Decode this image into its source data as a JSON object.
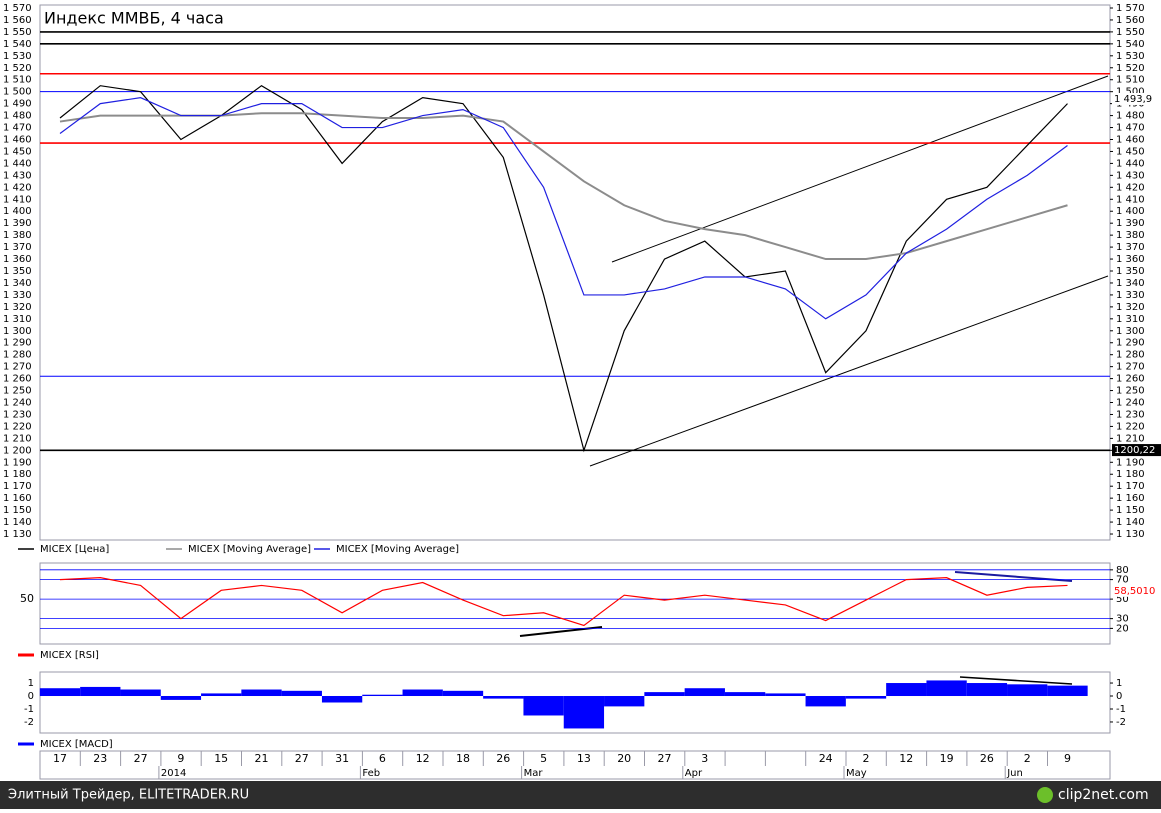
{
  "chart_data": [
    {
      "type": "line",
      "title": "Индекс ММВБ, 4 часа",
      "categories": [
        "17",
        "23",
        "27",
        "9",
        "15",
        "21",
        "27",
        "31",
        "6",
        "12",
        "18",
        "26",
        "5",
        "13",
        "20",
        "27",
        "3",
        null,
        null,
        "24",
        "2",
        "12",
        "19",
        "26",
        "2",
        "9"
      ],
      "months": [
        null,
        null,
        null,
        "2014",
        null,
        null,
        null,
        null,
        "Feb",
        null,
        null,
        null,
        "Mar",
        null,
        null,
        null,
        "Apr",
        null,
        null,
        null,
        "May",
        null,
        null,
        null,
        "Jun",
        null
      ],
      "series": [
        {
          "name": "MICEX [Цена]",
          "color": "#000000",
          "values": [
            1478,
            1505,
            1500,
            1460,
            1480,
            1505,
            1485,
            1440,
            1475,
            1495,
            1490,
            1445,
            1330,
            1200,
            1300,
            1360,
            1375,
            1345,
            1350,
            1265,
            1300,
            1375,
            1410,
            1420,
            1455,
            1490
          ]
        },
        {
          "name": "MICEX [Moving Average]",
          "color": "#8c8c8c",
          "values": [
            1475,
            1480,
            1480,
            1480,
            1480,
            1482,
            1482,
            1480,
            1478,
            1478,
            1480,
            1475,
            1450,
            1425,
            1405,
            1392,
            1385,
            1380,
            1370,
            1360,
            1360,
            1365,
            1375,
            1385,
            1395,
            1405
          ]
        },
        {
          "name": "MICEX [Moving Average]",
          "color": "#2020e0",
          "values": [
            1465,
            1490,
            1495,
            1480,
            1480,
            1490,
            1490,
            1470,
            1470,
            1480,
            1485,
            1470,
            1420,
            1330,
            1330,
            1335,
            1345,
            1345,
            1335,
            1310,
            1330,
            1365,
            1385,
            1410,
            1430,
            1455
          ]
        }
      ],
      "levels": [
        {
          "value": 1550,
          "color": "#000000"
        },
        {
          "value": 1540,
          "color": "#000000"
        },
        {
          "value": 1515,
          "color": "#ff0000"
        },
        {
          "value": 1457,
          "color": "#ff0000"
        },
        {
          "value": 1500,
          "color": "#0000ff"
        },
        {
          "value": 1262,
          "color": "#0000ff"
        },
        {
          "value": 1200,
          "color": "#000000"
        }
      ],
      "annotations": [
        {
          "text": "1 493,9",
          "value": 1493.9
        },
        {
          "text": "1200,22",
          "value": 1200.22
        }
      ],
      "ylim": [
        1125,
        1572.5
      ],
      "yticks": [
        {
          "value": 1130,
          "label": "1 130"
        },
        {
          "value": 1140,
          "label": "1 140"
        },
        {
          "value": 1150,
          "label": "1 150"
        },
        {
          "value": 1160,
          "label": "1 160"
        },
        {
          "value": 1170,
          "label": "1 170"
        },
        {
          "value": 1180,
          "label": "1 180"
        },
        {
          "value": 1190,
          "label": "1 190"
        },
        {
          "value": 1200,
          "label": "1 200"
        },
        {
          "value": 1210,
          "label": "1 210"
        },
        {
          "value": 1220,
          "label": "1 220"
        },
        {
          "value": 1230,
          "label": "1 230"
        },
        {
          "value": 1240,
          "label": "1 240"
        },
        {
          "value": 1250,
          "label": "1 250"
        },
        {
          "value": 1260,
          "label": "1 260"
        },
        {
          "value": 1270,
          "label": "1 270"
        },
        {
          "value": 1280,
          "label": "1 280"
        },
        {
          "value": 1290,
          "label": "1 290"
        },
        {
          "value": 1300,
          "label": "1 300"
        },
        {
          "value": 1310,
          "label": "1 310"
        },
        {
          "value": 1320,
          "label": "1 320"
        },
        {
          "value": 1330,
          "label": "1 330"
        },
        {
          "value": 1340,
          "label": "1 340"
        },
        {
          "value": 1350,
          "label": "1 350"
        },
        {
          "value": 1360,
          "label": "1 360"
        },
        {
          "value": 1370,
          "label": "1 370"
        },
        {
          "value": 1380,
          "label": "1 380"
        },
        {
          "value": 1390,
          "label": "1 390"
        },
        {
          "value": 1400,
          "label": "1 400"
        },
        {
          "value": 1410,
          "label": "1 410"
        },
        {
          "value": 1420,
          "label": "1 420"
        },
        {
          "value": 1430,
          "label": "1 430"
        },
        {
          "value": 1440,
          "label": "1 440"
        },
        {
          "value": 1450,
          "label": "1 450"
        },
        {
          "value": 1460,
          "label": "1 460"
        },
        {
          "value": 1470,
          "label": "1 470"
        },
        {
          "value": 1480,
          "label": "1 480"
        },
        {
          "value": 1490,
          "label": "1 490"
        },
        {
          "value": 1500,
          "label": "1 500"
        },
        {
          "value": 1510,
          "label": "1 510"
        },
        {
          "value": 1520,
          "label": "1 520"
        },
        {
          "value": 1530,
          "label": "1 530"
        },
        {
          "value": 1540,
          "label": "1 540"
        },
        {
          "value": 1550,
          "label": "1 550"
        },
        {
          "value": 1560,
          "label": "1 560"
        },
        {
          "value": 1570,
          "label": "1 570"
        }
      ]
    },
    {
      "type": "line",
      "series": [
        {
          "name": "MICEX [RSI]",
          "color": "#ff0000",
          "values": [
            70,
            72,
            64,
            30,
            59,
            64,
            59,
            36,
            59,
            67,
            49,
            33,
            36,
            23,
            54,
            49,
            54,
            49,
            44,
            28,
            49,
            70,
            72,
            54,
            62,
            64
          ]
        }
      ],
      "annotations": [
        {
          "text": "58,5010",
          "value": 58.501
        }
      ],
      "ylim": [
        4,
        87
      ],
      "yticks": [
        20,
        30,
        50,
        70,
        80
      ],
      "left_ticks": [
        50
      ],
      "grid": true,
      "grid_color": "#0000ff"
    },
    {
      "type": "bar",
      "series": [
        {
          "name": "MICEX [MACD]",
          "color": "#0000ff",
          "values": [
            0.6,
            0.7,
            0.5,
            -0.3,
            0.2,
            0.5,
            0.4,
            -0.5,
            0.1,
            0.5,
            0.4,
            -0.2,
            -1.5,
            -2.5,
            -0.8,
            0.3,
            0.6,
            0.3,
            0.2,
            -0.8,
            -0.2,
            1.0,
            1.2,
            1.0,
            0.9,
            0.8
          ]
        }
      ],
      "ylim": [
        -2.85,
        1.85
      ],
      "yticks": [
        -2,
        -1,
        0,
        1
      ]
    }
  ],
  "footer": {
    "left": "Элитный Трейдер, ELITETRADER.RU",
    "right": "clip2net.com"
  }
}
